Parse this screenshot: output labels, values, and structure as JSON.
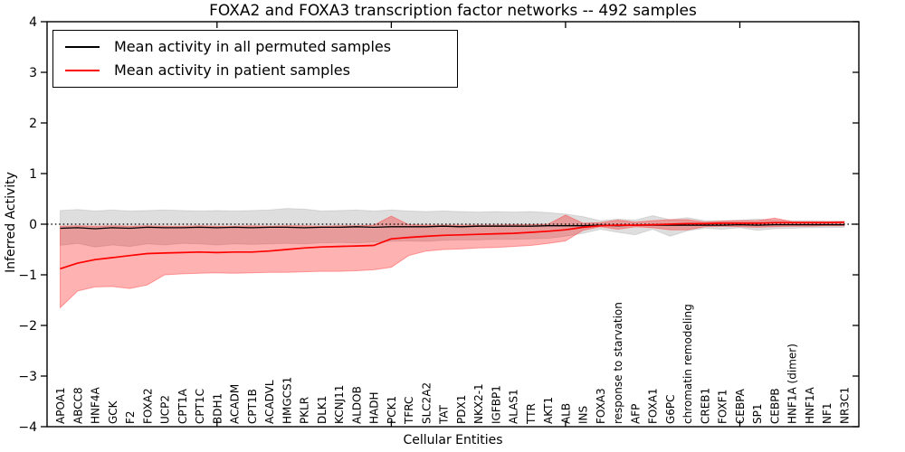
{
  "title": "FOXA2 and FOXA3 transcription factor networks -- 492 samples",
  "legend": {
    "items": [
      {
        "label": "Mean activity in all permuted samples",
        "color": "#000000"
      },
      {
        "label": "Mean activity in patient samples",
        "color": "#ff0000"
      }
    ]
  },
  "chart_data": {
    "type": "line",
    "title": "FOXA2 and FOXA3 transcription factor networks -- 492 samples",
    "xlabel": "Cellular Entities",
    "ylabel": "Inferred Activity",
    "ylim": [
      -4,
      4
    ],
    "yticks": [
      -4,
      -3,
      -2,
      -1,
      0,
      1,
      2,
      3,
      4
    ],
    "xtick_positions": [
      9,
      19,
      29,
      39
    ],
    "grid": false,
    "legend_position": "upper left",
    "zero_reference_line": true,
    "categories": [
      "APOA1",
      "ABCC8",
      "HNF4A",
      "GCK",
      "F2",
      "FOXA2",
      "UCP2",
      "CPT1A",
      "CPT1C",
      "BDH1",
      "ACADM",
      "CPT1B",
      "ACADVL",
      "HMGCS1",
      "PKLR",
      "DLK1",
      "KCNJ11",
      "ALDOB",
      "HADH",
      "PCK1",
      "TFRC",
      "SLC2A2",
      "TAT",
      "PDX1",
      "NKX2-1",
      "IGFBP1",
      "ALAS1",
      "TTR",
      "AKT1",
      "ALB",
      "INS",
      "FOXA3",
      "response to starvation",
      "AFP",
      "FOXA1",
      "G6PC",
      "chromatin remodeling",
      "CREB1",
      "FOXF1",
      "CEBPA",
      "SP1",
      "CEBPB",
      "HNF1A (dimer)",
      "HNF1A",
      "NF1",
      "NR3C1"
    ],
    "series": [
      {
        "name": "Mean activity in all permuted samples",
        "color": "#000000",
        "line_width": 1.3,
        "band_color": "rgba(0,0,0,0.13)",
        "band_edge": "rgba(0,0,0,0.10)",
        "values": [
          -0.08,
          -0.07,
          -0.09,
          -0.07,
          -0.08,
          -0.06,
          -0.07,
          -0.07,
          -0.06,
          -0.07,
          -0.06,
          -0.07,
          -0.06,
          -0.06,
          -0.07,
          -0.06,
          -0.06,
          -0.05,
          -0.06,
          -0.05,
          -0.05,
          -0.05,
          -0.04,
          -0.05,
          -0.04,
          -0.04,
          -0.04,
          -0.04,
          -0.03,
          -0.03,
          -0.03,
          -0.02,
          -0.03,
          -0.02,
          -0.02,
          -0.02,
          -0.02,
          -0.02,
          -0.02,
          -0.01,
          -0.02,
          -0.01,
          -0.01,
          -0.01,
          -0.01,
          -0.01
        ],
        "band_upper": [
          0.27,
          0.29,
          0.26,
          0.28,
          0.26,
          0.27,
          0.28,
          0.27,
          0.26,
          0.27,
          0.26,
          0.27,
          0.28,
          0.31,
          0.3,
          0.26,
          0.27,
          0.28,
          0.26,
          0.28,
          0.26,
          0.25,
          0.26,
          0.25,
          0.24,
          0.25,
          0.24,
          0.25,
          0.23,
          0.2,
          0.15,
          0.07,
          0.1,
          0.08,
          0.17,
          0.09,
          0.13,
          0.07,
          0.07,
          0.08,
          0.1,
          0.08,
          0.07,
          0.07,
          0.06,
          0.06
        ],
        "band_lower": [
          -0.42,
          -0.38,
          -0.45,
          -0.41,
          -0.44,
          -0.39,
          -0.41,
          -0.38,
          -0.39,
          -0.41,
          -0.39,
          -0.4,
          -0.39,
          -0.38,
          -0.39,
          -0.37,
          -0.36,
          -0.37,
          -0.35,
          -0.34,
          -0.33,
          -0.34,
          -0.32,
          -0.31,
          -0.31,
          -0.3,
          -0.3,
          -0.29,
          -0.28,
          -0.24,
          -0.18,
          -0.1,
          -0.16,
          -0.21,
          -0.1,
          -0.24,
          -0.13,
          -0.08,
          -0.1,
          -0.07,
          -0.12,
          -0.09,
          -0.08,
          -0.07,
          -0.07,
          -0.06
        ]
      },
      {
        "name": "Mean activity in patient samples",
        "color": "#ff0000",
        "line_width": 1.7,
        "band_color": "rgba(255,0,0,0.30)",
        "band_edge": "rgba(255,60,60,0.45)",
        "values": [
          -0.88,
          -0.77,
          -0.7,
          -0.66,
          -0.62,
          -0.58,
          -0.57,
          -0.56,
          -0.55,
          -0.56,
          -0.55,
          -0.55,
          -0.53,
          -0.5,
          -0.47,
          -0.45,
          -0.44,
          -0.43,
          -0.42,
          -0.29,
          -0.26,
          -0.24,
          -0.22,
          -0.21,
          -0.2,
          -0.19,
          -0.18,
          -0.16,
          -0.14,
          -0.11,
          -0.06,
          -0.03,
          -0.02,
          -0.02,
          -0.01,
          0.0,
          0.01,
          0.01,
          0.02,
          0.02,
          0.02,
          0.03,
          0.03,
          0.03,
          0.03,
          0.04
        ],
        "band_upper": [
          -0.04,
          -0.03,
          -0.04,
          -0.03,
          -0.04,
          -0.03,
          -0.04,
          -0.04,
          -0.03,
          -0.04,
          -0.04,
          -0.03,
          -0.04,
          -0.03,
          -0.03,
          -0.04,
          -0.03,
          -0.03,
          -0.02,
          0.16,
          -0.01,
          -0.02,
          -0.02,
          -0.02,
          -0.02,
          -0.02,
          -0.01,
          -0.01,
          0.0,
          0.18,
          0.02,
          0.03,
          0.08,
          0.04,
          0.07,
          0.09,
          0.09,
          0.04,
          0.06,
          0.07,
          0.07,
          0.12,
          0.05,
          0.05,
          0.05,
          0.05
        ],
        "band_lower": [
          -1.65,
          -1.32,
          -1.24,
          -1.23,
          -1.27,
          -1.2,
          -1.0,
          -0.98,
          -0.97,
          -0.96,
          -0.97,
          -0.96,
          -0.95,
          -0.95,
          -0.94,
          -0.93,
          -0.93,
          -0.92,
          -0.9,
          -0.85,
          -0.62,
          -0.53,
          -0.5,
          -0.49,
          -0.47,
          -0.46,
          -0.44,
          -0.42,
          -0.38,
          -0.33,
          -0.12,
          -0.05,
          -0.1,
          -0.05,
          -0.07,
          -0.11,
          -0.11,
          -0.05,
          -0.04,
          -0.05,
          -0.06,
          -0.05,
          -0.04,
          -0.04,
          -0.03,
          -0.03
        ]
      }
    ]
  }
}
